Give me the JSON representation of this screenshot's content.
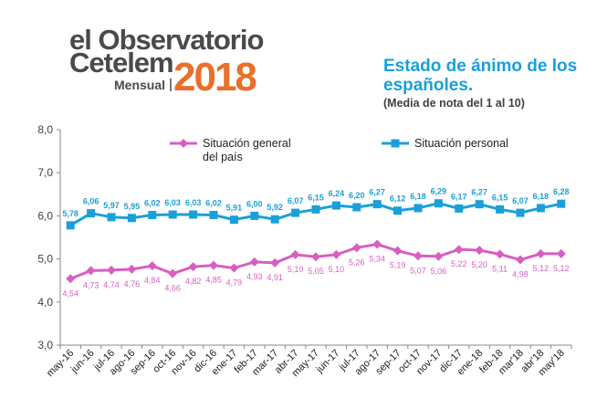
{
  "logo": {
    "line1": "el Observatorio",
    "line2": "Cetelem",
    "edition": "Mensual",
    "year": "2018",
    "color_dark": "#4a4a4a",
    "color_orange": "#e8702a"
  },
  "header": {
    "title": "Estado de ánimo de los españoles.",
    "subtitle": "(Media de nota del 1 al 10)"
  },
  "chart_data": {
    "type": "line",
    "title": "Estado de ánimo de los españoles.",
    "subtitle": "(Media de nota del 1 al 10)",
    "xlabel": "",
    "ylabel": "",
    "ylim": [
      3.0,
      8.0
    ],
    "yticks": [
      "3,0",
      "4,0",
      "5,0",
      "6,0",
      "7,0",
      "8,0"
    ],
    "categories": [
      "may-16",
      "jun-16",
      "jul-16",
      "ago-16",
      "sep-16",
      "oct-16",
      "nov-16",
      "dic-16",
      "ene-17",
      "feb-17",
      "mar-17",
      "abr-17",
      "may-17",
      "jun-17",
      "jul-17",
      "ago-17",
      "sep-17",
      "oct-17",
      "nov-17",
      "dic-17",
      "ene-18",
      "feb-18",
      "mar'18",
      "abr'18",
      "may'18"
    ],
    "legend_position": "top",
    "grid": false,
    "series": [
      {
        "name": "Situación general del país",
        "legend_lines": [
          "Situación general",
          "del país"
        ],
        "color": "#d75fc0",
        "marker": "diamond",
        "values": [
          4.54,
          4.73,
          4.74,
          4.76,
          4.84,
          4.66,
          4.82,
          4.85,
          4.79,
          4.93,
          4.91,
          5.1,
          5.05,
          5.1,
          5.26,
          5.34,
          5.19,
          5.07,
          5.06,
          5.22,
          5.2,
          5.11,
          4.98,
          5.12,
          5.12
        ],
        "labels": [
          "4,54",
          "4,73",
          "4,74",
          "4,76",
          "4,84",
          "4,66",
          "4,82",
          "4,85",
          "4,79",
          "4,93",
          "4,91",
          "5,10",
          "5,05",
          "5,10",
          "5,26",
          "5,34",
          "5,19",
          "5,07",
          "5,06",
          "5,22",
          "5,20",
          "5,11",
          "4,98",
          "5,12",
          "5,12"
        ]
      },
      {
        "name": "Situación personal",
        "legend_lines": [
          "Situación personal"
        ],
        "color": "#1aa0d8",
        "marker": "square",
        "values": [
          5.78,
          6.06,
          5.97,
          5.95,
          6.02,
          6.03,
          6.03,
          6.02,
          5.91,
          6.0,
          5.92,
          6.07,
          6.15,
          6.24,
          6.2,
          6.27,
          6.12,
          6.18,
          6.29,
          6.17,
          6.27,
          6.15,
          6.07,
          6.18,
          6.28
        ],
        "labels": [
          "5,78",
          "6,06",
          "5,97",
          "5,95",
          "6,02",
          "6,03",
          "6,03",
          "6,02",
          "5,91",
          "6,00",
          "5,92",
          "6,07",
          "6,15",
          "6,24",
          "6,20",
          "6,27",
          "6,12",
          "6,18",
          "6,29",
          "6,17",
          "6,27",
          "6,15",
          "6,07",
          "6,18",
          "6,28"
        ]
      }
    ]
  }
}
